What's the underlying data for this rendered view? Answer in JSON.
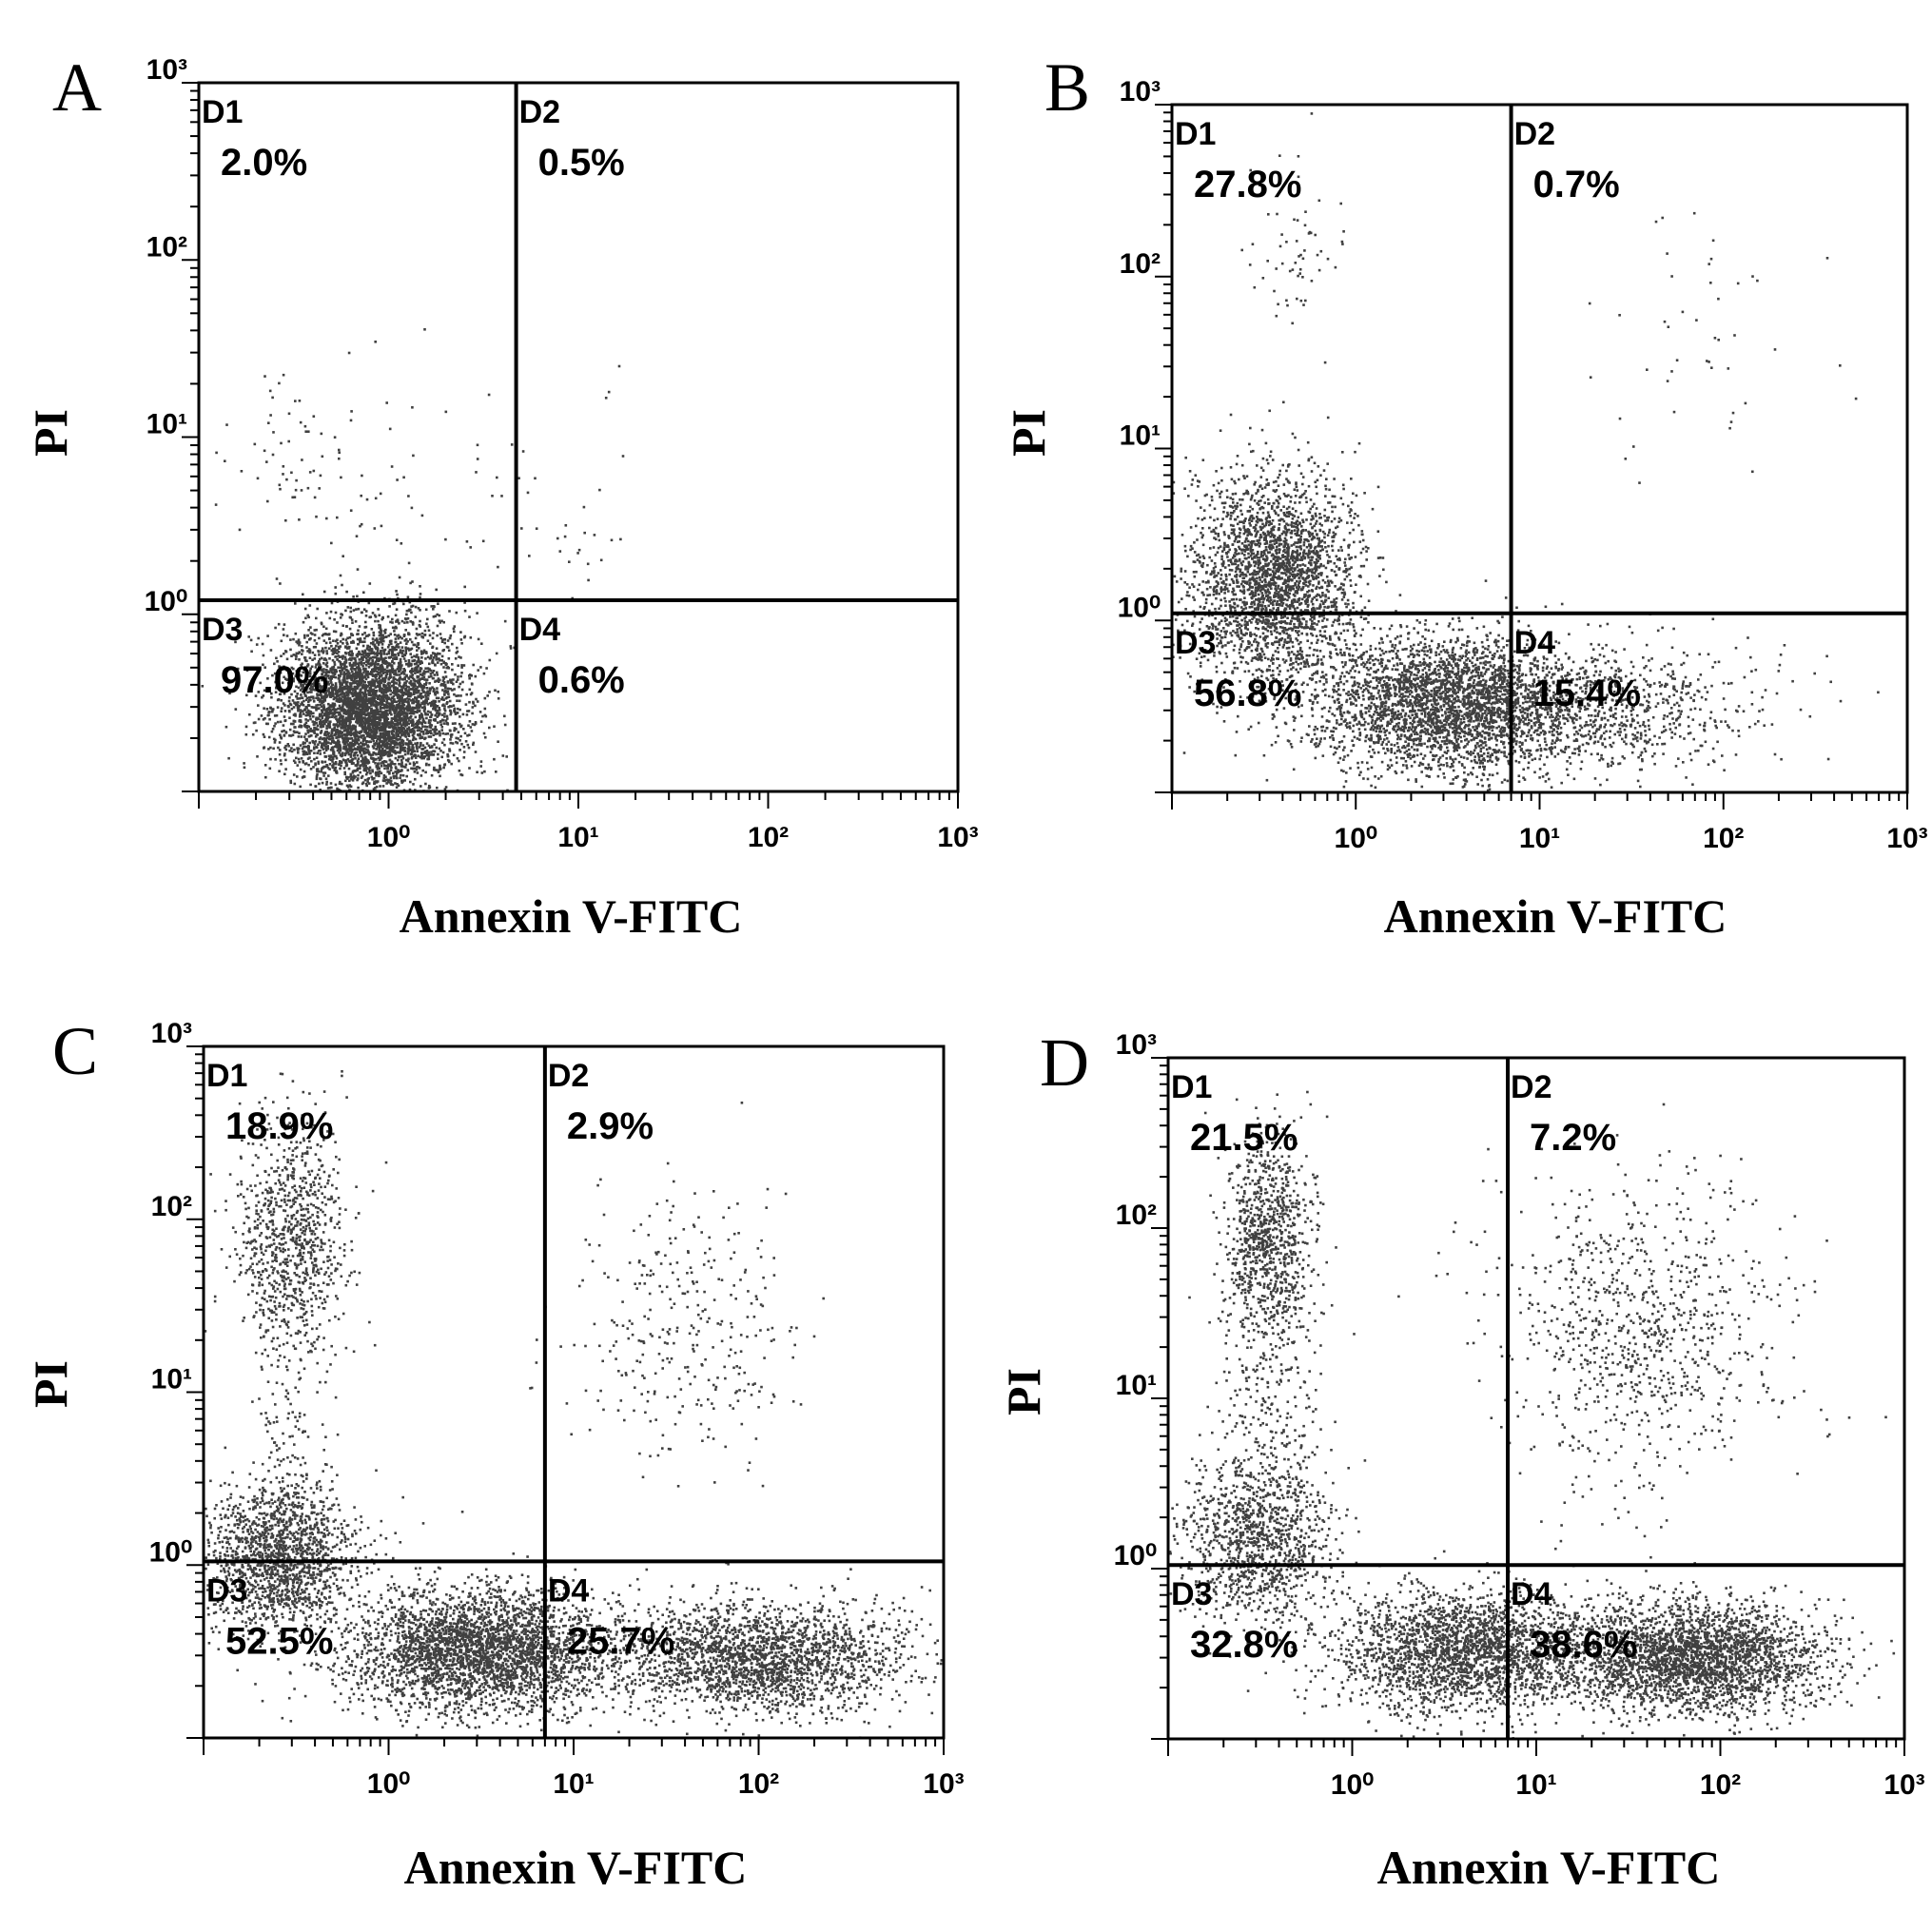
{
  "figure": {
    "panels": [
      {
        "letter": "A",
        "ylabel": "PI",
        "xlabel": "Annexin V-FITC",
        "quadrants": [
          {
            "name": "D1",
            "value": "2.0%"
          },
          {
            "name": "D2",
            "value": "0.5%"
          },
          {
            "name": "D3",
            "value": "97.0%"
          },
          {
            "name": "D4",
            "value": "0.6%"
          }
        ]
      },
      {
        "letter": "B",
        "ylabel": "PI",
        "xlabel": "Annexin V-FITC",
        "quadrants": [
          {
            "name": "D1",
            "value": "27.8%"
          },
          {
            "name": "D2",
            "value": "0.7%"
          },
          {
            "name": "D3",
            "value": "56.8%"
          },
          {
            "name": "D4",
            "value": "15.4%"
          }
        ]
      },
      {
        "letter": "C",
        "ylabel": "PI",
        "xlabel": "Annexin V-FITC",
        "quadrants": [
          {
            "name": "D1",
            "value": "18.9%"
          },
          {
            "name": "D2",
            "value": "2.9%"
          },
          {
            "name": "D3",
            "value": "52.5%"
          },
          {
            "name": "D4",
            "value": "25.7%"
          }
        ]
      },
      {
        "letter": "D",
        "ylabel": "PI",
        "xlabel": "Annexin V-FITC",
        "quadrants": [
          {
            "name": "D1",
            "value": "21.5%"
          },
          {
            "name": "D2",
            "value": "7.2%"
          },
          {
            "name": "D3",
            "value": "32.8%"
          },
          {
            "name": "D4",
            "value": "38.6%"
          }
        ]
      }
    ]
  },
  "chart_data": [
    {
      "type": "scatter",
      "panel": "A",
      "xlabel": "Annexin V-FITC",
      "ylabel": "PI",
      "x_scale": "log",
      "y_scale": "log",
      "xlim": [
        0.1,
        1000
      ],
      "ylim": [
        0.1,
        1000
      ],
      "x_ticks": [
        "10⁰",
        "10¹",
        "10²",
        "10³"
      ],
      "y_ticks": [
        "10⁰",
        "10¹",
        "10²",
        "10³"
      ],
      "gate": {
        "x": 4.7,
        "y": 1.2
      },
      "quadrants": {
        "D1": 2.0,
        "D2": 0.5,
        "D3": 97.0,
        "D4": 0.6
      },
      "clusters": [
        {
          "cx": 0.8,
          "cy": 0.3,
          "sx": 0.24,
          "sy": 0.24,
          "n": 5000
        },
        {
          "cx": 0.5,
          "cy": 7,
          "sx": 0.3,
          "sy": 0.3,
          "n": 100
        },
        {
          "cx": 4.5,
          "cy": 5,
          "sx": 0.3,
          "sy": 0.35,
          "n": 30
        },
        {
          "cx": 10,
          "cy": 3,
          "sx": 0.3,
          "sy": 0.3,
          "n": 12
        }
      ],
      "color": "#404040"
    },
    {
      "type": "scatter",
      "panel": "B",
      "xlabel": "Annexin V-FITC",
      "ylabel": "PI",
      "x_scale": "log",
      "y_scale": "log",
      "xlim": [
        0.1,
        1000
      ],
      "ylim": [
        0.1,
        1000
      ],
      "x_ticks": [
        "10⁰",
        "10¹",
        "10²",
        "10³"
      ],
      "y_ticks": [
        "10⁰",
        "10¹",
        "10²",
        "10³"
      ],
      "gate": {
        "x": 7,
        "y": 1.1
      },
      "quadrants": {
        "D1": 27.8,
        "D2": 0.7,
        "D3": 56.8,
        "D4": 15.4
      },
      "clusters": [
        {
          "cx": 0.35,
          "cy": 1.8,
          "sx": 0.22,
          "sy": 0.3,
          "n": 2600
        },
        {
          "cx": 3.0,
          "cy": 0.33,
          "sx": 0.35,
          "sy": 0.2,
          "n": 3000
        },
        {
          "cx": 20,
          "cy": 0.3,
          "sx": 0.45,
          "sy": 0.18,
          "n": 900
        },
        {
          "cx": 0.45,
          "cy": 150,
          "sx": 0.12,
          "sy": 0.25,
          "n": 60
        },
        {
          "cx": 80,
          "cy": 40,
          "sx": 0.3,
          "sy": 0.4,
          "n": 45
        }
      ],
      "color": "#404040"
    },
    {
      "type": "scatter",
      "panel": "C",
      "xlabel": "Annexin V-FITC",
      "ylabel": "PI",
      "x_scale": "log",
      "y_scale": "log",
      "xlim": [
        0.1,
        1000
      ],
      "ylim": [
        0.1,
        1000
      ],
      "x_ticks": [
        "10⁰",
        "10¹",
        "10²",
        "10³"
      ],
      "y_ticks": [
        "10⁰",
        "10¹",
        "10²",
        "10³"
      ],
      "gate": {
        "x": 7,
        "y": 1.05
      },
      "quadrants": {
        "D1": 18.9,
        "D2": 2.9,
        "D3": 52.5,
        "D4": 25.7
      },
      "clusters": [
        {
          "cx": 0.25,
          "cy": 1.1,
          "sx": 0.22,
          "sy": 0.22,
          "n": 1600
        },
        {
          "cx": 3.0,
          "cy": 0.33,
          "sx": 0.35,
          "sy": 0.18,
          "n": 3200
        },
        {
          "cx": 100,
          "cy": 0.3,
          "sx": 0.4,
          "sy": 0.16,
          "n": 2200
        },
        {
          "cx": 0.3,
          "cy": 80,
          "sx": 0.15,
          "sy": 0.35,
          "n": 900
        },
        {
          "cx": 0.3,
          "cy": 5,
          "sx": 0.12,
          "sy": 0.45,
          "n": 150
        },
        {
          "cx": 40,
          "cy": 25,
          "sx": 0.3,
          "sy": 0.4,
          "n": 320
        }
      ],
      "color": "#404040"
    },
    {
      "type": "scatter",
      "panel": "D",
      "xlabel": "Annexin V-FITC",
      "ylabel": "PI",
      "x_scale": "log",
      "y_scale": "log",
      "xlim": [
        0.1,
        1000
      ],
      "ylim": [
        0.1,
        1000
      ],
      "x_ticks": [
        "10⁰",
        "10¹",
        "10²",
        "10³"
      ],
      "y_ticks": [
        "10⁰",
        "10¹",
        "10²",
        "10³"
      ],
      "gate": {
        "x": 7,
        "y": 1.05
      },
      "quadrants": {
        "D1": 21.5,
        "D2": 7.2,
        "D3": 32.8,
        "D4": 38.6
      },
      "clusters": [
        {
          "cx": 0.3,
          "cy": 1.5,
          "sx": 0.2,
          "sy": 0.25,
          "n": 1100
        },
        {
          "cx": 4.0,
          "cy": 0.33,
          "sx": 0.35,
          "sy": 0.18,
          "n": 2400
        },
        {
          "cx": 70,
          "cy": 0.3,
          "sx": 0.35,
          "sy": 0.16,
          "n": 2800
        },
        {
          "cx": 0.35,
          "cy": 90,
          "sx": 0.12,
          "sy": 0.3,
          "n": 900
        },
        {
          "cx": 0.35,
          "cy": 8,
          "sx": 0.15,
          "sy": 0.45,
          "n": 300
        },
        {
          "cx": 35,
          "cy": 25,
          "sx": 0.4,
          "sy": 0.45,
          "n": 900
        }
      ],
      "color": "#404040"
    }
  ]
}
